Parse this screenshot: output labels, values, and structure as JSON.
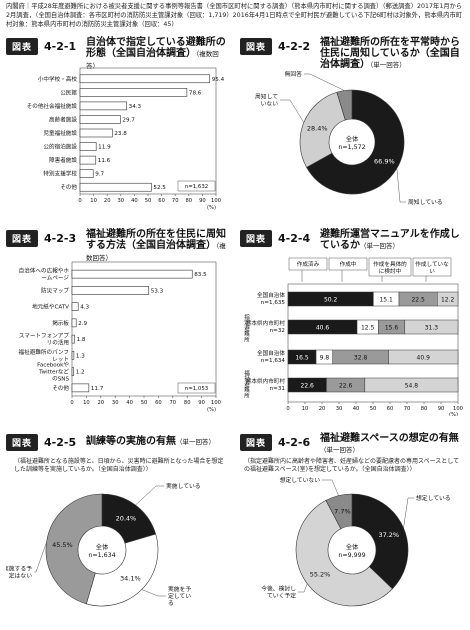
{
  "source_note": "内閣府｜平成28年度避難所における被災者支援に関する事例等報告書（全国市区町村に関する調査）（熊本県内市町村に関する調査）（郵送調査）2017年1月から2月調査，（全国自治体調査：各市区町村の消防防災主管課対象（回収：1,719）2016年4月1日時点で全町村民が避難している下記6町村は対象外，熊本県内市町村対象：熊本県内市町村の消防防災主管課対象（回収：45）",
  "figure_tag": "図表",
  "chart_data": [
    {
      "id": "4-2-1",
      "type": "bar",
      "title": "自治体で指定している避難所の形態（全国自治体調査）",
      "note": "（複数回答）",
      "categories": [
        "小中学校・高校",
        "公民館",
        "その他社会福祉施設",
        "高齢者施設",
        "児童福祉施設",
        "公的宿泊施設",
        "障害者施設",
        "特別支援学校",
        "その他"
      ],
      "values": [
        95.4,
        78.6,
        34.3,
        29.7,
        23.8,
        11.9,
        11.6,
        9.7,
        52.5
      ],
      "value_labels": [
        "95.4",
        "78.6",
        "34.3",
        "29.7",
        "23.8",
        "11.9",
        "11.6",
        "9.7",
        "52.5"
      ],
      "n_label": "n=1,632",
      "ylim": [
        0,
        100
      ],
      "tick_labels": [
        "0",
        "10",
        "20",
        "30",
        "40",
        "50",
        "60",
        "70",
        "80",
        "90",
        "100"
      ],
      "unit": "(%)"
    },
    {
      "id": "4-2-2",
      "type": "pie",
      "title": "福祉避難所の所在を平常時から住民に周知しているか（全国自治体調査）",
      "note": "（単一回答）",
      "center_label": [
        "全体",
        "n=1,572"
      ],
      "slices": [
        {
          "label": "周知している",
          "value": 66.9,
          "value_label": "66.9%",
          "color": "#1a1a1a"
        },
        {
          "label": "周知していない",
          "value": 28.4,
          "value_label": "28.4%",
          "color": "#cfcfcf"
        },
        {
          "label": "無回答",
          "value": 4.7,
          "value_label": "",
          "color": "#8a8a8a"
        }
      ]
    },
    {
      "id": "4-2-3",
      "type": "bar",
      "title": "福祉避難所の所在を住民に周知する方法（全国自治体調査）",
      "note": "（複数回答）",
      "categories": [
        "自治体への広報やホームページ",
        "防災マップ",
        "地元紙やCATV",
        "掲示板",
        "スマートフォンアプリの活用",
        "福祉避難所のパンフレット",
        "FacebookやTwitterなどのSNS",
        "その他"
      ],
      "values": [
        83.5,
        53.3,
        4.3,
        2.9,
        1.8,
        1.3,
        1.2,
        11.7
      ],
      "value_labels": [
        "83.5",
        "53.3",
        "4.3",
        "2.9",
        "1.8",
        "1.3",
        "1.2",
        "11.7"
      ],
      "n_label": "n=1,053",
      "ylim": [
        0,
        100
      ],
      "tick_labels": [
        "0",
        "10",
        "20",
        "30",
        "40",
        "50",
        "60",
        "70",
        "80",
        "90",
        "100"
      ],
      "unit": "(%)"
    },
    {
      "id": "4-2-4",
      "type": "bar",
      "stacked": true,
      "title": "避難所運営マニュアルを作成しているか",
      "note": "（単一回答）",
      "legend": [
        {
          "name": "作成済み",
          "color": "#1a1a1a"
        },
        {
          "name": "作成中",
          "color": "#ffffff"
        },
        {
          "name": "作成を具体的に検討中",
          "color": "#9a9a9a"
        },
        {
          "name": "作成していない",
          "color": "#d4d4d4"
        }
      ],
      "categories": [
        "全国自治体 n=1,635",
        "熊本県内市町村 n=32",
        "全国自治体 n=1,634",
        "熊本県内市町村 n=31"
      ],
      "group_labels": [
        "指定避難所",
        "福祉避難所"
      ],
      "rows": [
        {
          "values": [
            50.2,
            15.1,
            22.5,
            12.2
          ],
          "labels": [
            "50.2",
            "15.1",
            "22.5",
            "12.2"
          ]
        },
        {
          "values": [
            40.6,
            12.5,
            15.6,
            31.3
          ],
          "labels": [
            "40.6",
            "12.5",
            "15.6",
            "31.3"
          ]
        },
        {
          "values": [
            16.5,
            9.8,
            32.8,
            40.9
          ],
          "labels": [
            "16.5",
            "9.8",
            "32.8",
            "40.9"
          ]
        },
        {
          "values": [
            22.6,
            0,
            22.6,
            54.8
          ],
          "labels": [
            "22.6",
            "",
            "22.6",
            "54.8"
          ]
        }
      ],
      "tick_labels": [
        "0",
        "10",
        "20",
        "30",
        "40",
        "50",
        "60",
        "70",
        "80",
        "90",
        "100"
      ],
      "unit": "(%)"
    },
    {
      "id": "4-2-5",
      "type": "pie",
      "title": "訓練等の実施の有無",
      "note": "（単一回答）",
      "subtitle": "（福祉避難所となる施設等と、日頃から、災害時に避難所となった場合を想定した訓練等を実施しているか。（全国自治体調査））",
      "center_label": [
        "全体",
        "n=1,634"
      ],
      "slices": [
        {
          "label": "実施している",
          "value": 20.4,
          "value_label": "20.4%",
          "color": "#1a1a1a"
        },
        {
          "label": "実施を予定している",
          "value": 34.1,
          "value_label": "34.1%",
          "color": "#ffffff"
        },
        {
          "label": "実施する予定はない",
          "value": 45.5,
          "value_label": "45.5%",
          "color": "#9a9a9a"
        }
      ]
    },
    {
      "id": "4-2-6",
      "type": "pie",
      "title": "福祉避難スペースの想定の有無",
      "note": "（単一回答）",
      "subtitle": "（指定避難所内に高齢者や障害者、妊産婦などの要配慮者の専用スペースとしての福祉避難スペース(室)を想定しているか。（全国自治体調査））",
      "center_label": [
        "全体",
        "n=9,999"
      ],
      "slices": [
        {
          "label": "想定している",
          "value": 37.2,
          "value_label": "37.2%",
          "color": "#1a1a1a"
        },
        {
          "label": "今後、検討していく予定",
          "value": 55.2,
          "value_label": "55.2%",
          "color": "#d4d4d4"
        },
        {
          "label": "想定していない",
          "value": 7.7,
          "value_label": "7.7%",
          "color": "#8a8a8a"
        }
      ]
    }
  ]
}
